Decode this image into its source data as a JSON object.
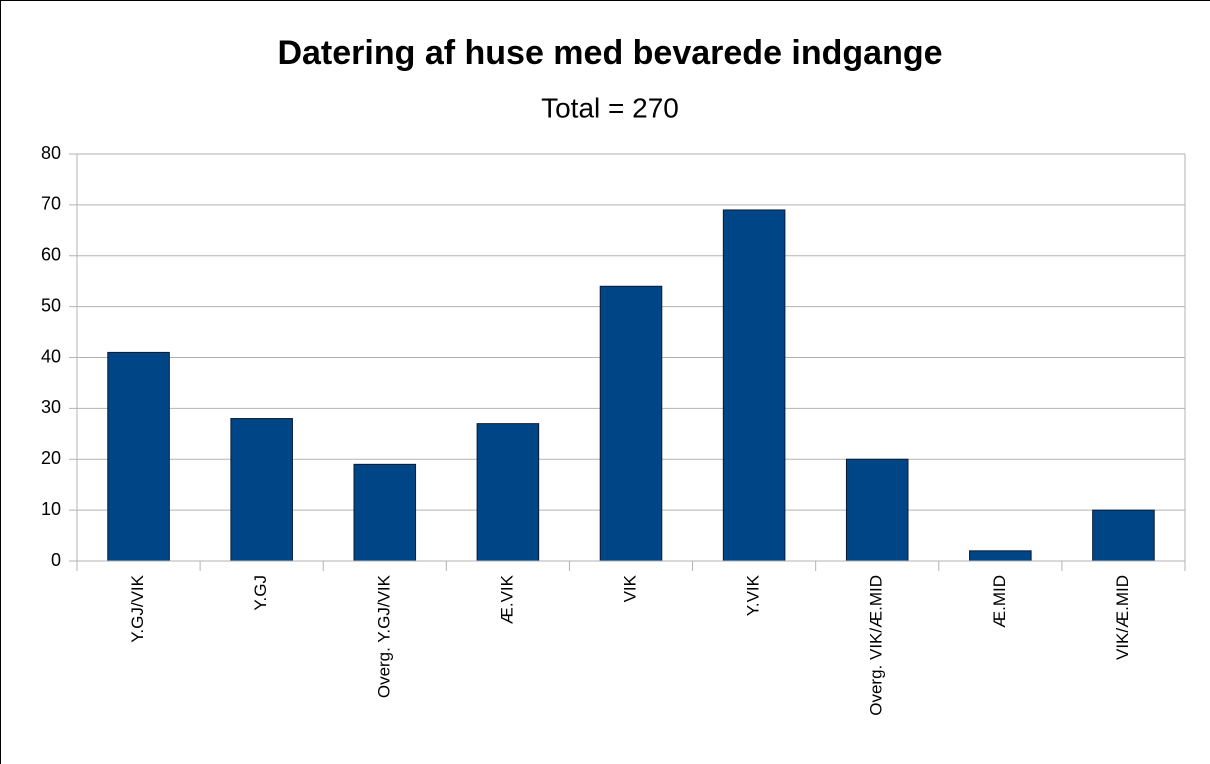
{
  "chart_data": {
    "type": "bar",
    "title": "Datering af huse med bevarede indgange",
    "subtitle": "Total = 270",
    "categories": [
      "Y.GJ/VIK",
      "Y.GJ",
      "Overg. Y.GJ/VIK",
      "Æ.VIK",
      "VIK",
      "Y.VIK",
      "Overg. VIK/Æ.MID",
      "Æ.MID",
      "VIK/Æ.MID"
    ],
    "values": [
      41,
      28,
      19,
      27,
      54,
      69,
      20,
      2,
      10
    ],
    "color": "#004586",
    "ylim": [
      0,
      80
    ],
    "yticks": [
      0,
      10,
      20,
      30,
      40,
      50,
      60,
      70,
      80
    ],
    "grid": true
  }
}
